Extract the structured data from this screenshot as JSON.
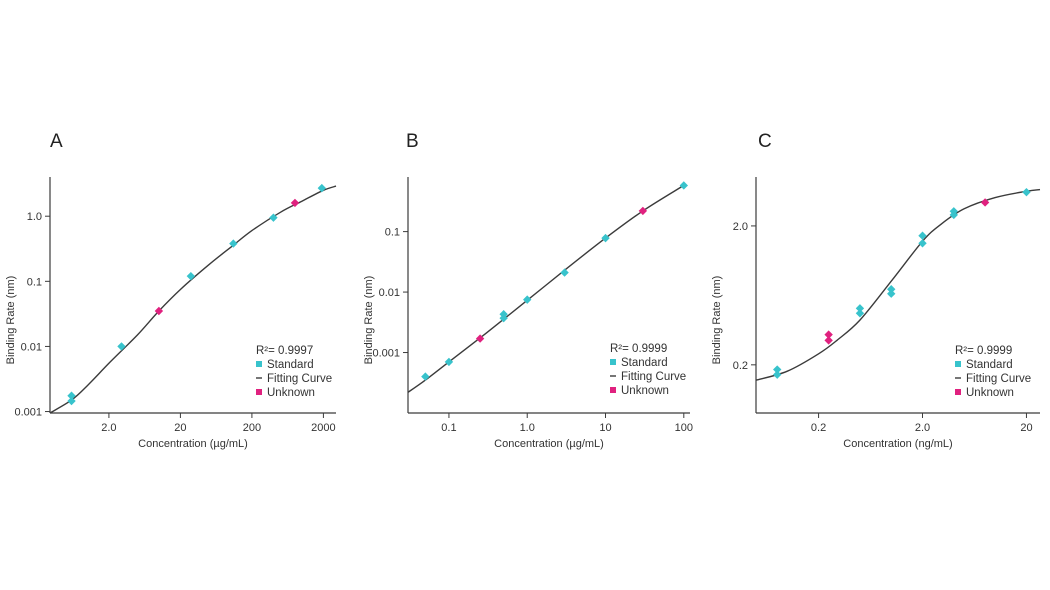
{
  "colors": {
    "standard": "#38c3cc",
    "unknown": "#e0217f",
    "curve": "#3b3b3b",
    "axis": "#3b3b3b"
  },
  "chart_data": [
    {
      "type": "scatter",
      "panel": "A",
      "xscale": "log",
      "yscale": "log",
      "xlabel": "Concentration (µg/mL)",
      "ylabel": "Binding Rate (nm)",
      "xlim": [
        0.3,
        3000
      ],
      "ylim": [
        0.00095,
        4
      ],
      "xticks": [
        2.0,
        20,
        200,
        2000
      ],
      "xtick_labels": [
        "2.0",
        "20",
        "200",
        "2000"
      ],
      "yticks": [
        0.001,
        0.01,
        0.1,
        1.0
      ],
      "ytick_labels": [
        "0.001",
        "0.01",
        "0.1",
        "1.0"
      ],
      "legend": {
        "r2": "R²= 0.9997",
        "standard": "Standard",
        "curve": "Fitting Curve",
        "unknown": "Unknown",
        "placement": "lower-right"
      },
      "series": [
        {
          "name": "Standard",
          "x": [
            0.6,
            0.6,
            3,
            28,
            110,
            400,
            1900
          ],
          "y": [
            0.00145,
            0.00175,
            0.01,
            0.12,
            0.38,
            0.95,
            2.7
          ]
        },
        {
          "name": "Unknown",
          "x": [
            10,
            800
          ],
          "y": [
            0.035,
            1.6
          ]
        },
        {
          "name": "Fitting Curve",
          "x": [
            0.3,
            0.6,
            1,
            2,
            5,
            10,
            20,
            50,
            100,
            200,
            500,
            1000,
            2000,
            3000
          ],
          "y": [
            0.00095,
            0.0015,
            0.0025,
            0.0055,
            0.015,
            0.035,
            0.075,
            0.18,
            0.33,
            0.6,
            1.15,
            1.7,
            2.5,
            2.9
          ]
        }
      ]
    },
    {
      "type": "scatter",
      "panel": "B",
      "xscale": "log",
      "yscale": "log",
      "xlabel": "Concentration (µg/mL)",
      "ylabel": "Binding Rate (nm)",
      "xlim": [
        0.03,
        120
      ],
      "ylim": [
        0.0001,
        0.8
      ],
      "xticks": [
        0.1,
        1.0,
        10,
        100
      ],
      "xtick_labels": [
        "0.1",
        "1.0",
        "10",
        "100"
      ],
      "yticks": [
        0.001,
        0.01,
        0.1
      ],
      "ytick_labels": [
        "0.001",
        "0.01",
        "0.1"
      ],
      "legend": {
        "r2": "R²= 0.9999",
        "standard": "Standard",
        "curve": "Fitting Curve",
        "unknown": "Unknown",
        "placement": "lower-right"
      },
      "series": [
        {
          "name": "Standard",
          "x": [
            0.05,
            0.1,
            0.5,
            0.5,
            1,
            3,
            10,
            100
          ],
          "y": [
            0.0004,
            0.0007,
            0.0037,
            0.0043,
            0.0075,
            0.021,
            0.078,
            0.58
          ]
        },
        {
          "name": "Unknown",
          "x": [
            0.25,
            30
          ],
          "y": [
            0.0017,
            0.22
          ]
        },
        {
          "name": "Fitting Curve",
          "x": [
            0.03,
            0.05,
            0.1,
            0.3,
            1,
            3,
            10,
            30,
            100
          ],
          "y": [
            0.00022,
            0.00035,
            0.0007,
            0.0021,
            0.0073,
            0.023,
            0.078,
            0.22,
            0.58
          ]
        }
      ]
    },
    {
      "type": "scatter",
      "panel": "C",
      "xscale": "log",
      "yscale": "log",
      "xlabel": "Concentration (ng/mL)",
      "ylabel": "Binding Rate (nm)",
      "xlim": [
        0.05,
        27
      ],
      "ylim": [
        0.09,
        4.5
      ],
      "xticks": [
        0.2,
        2.0,
        20
      ],
      "xtick_labels": [
        "0.2",
        "2.0",
        "20"
      ],
      "yticks": [
        0.2,
        2.0
      ],
      "ytick_labels": [
        "0.2",
        "2.0"
      ],
      "legend": {
        "r2": "R²= 0.9999",
        "standard": "Standard",
        "curve": "Fitting Curve",
        "unknown": "Unknown",
        "placement": "lower-right"
      },
      "series": [
        {
          "name": "Standard",
          "x": [
            0.08,
            0.08,
            0.5,
            0.5,
            1,
            1,
            2,
            2,
            4,
            4,
            20
          ],
          "y": [
            0.17,
            0.185,
            0.47,
            0.51,
            0.65,
            0.7,
            1.5,
            1.7,
            2.4,
            2.55,
            3.5
          ]
        },
        {
          "name": "Unknown",
          "x": [
            0.25,
            0.25,
            8
          ],
          "y": [
            0.3,
            0.33,
            2.95
          ]
        },
        {
          "name": "Fitting Curve",
          "x": [
            0.05,
            0.1,
            0.2,
            0.3,
            0.5,
            1,
            2,
            3,
            5,
            10,
            20,
            27
          ],
          "y": [
            0.155,
            0.18,
            0.24,
            0.3,
            0.42,
            0.8,
            1.55,
            2.05,
            2.65,
            3.2,
            3.55,
            3.65
          ]
        }
      ]
    }
  ]
}
